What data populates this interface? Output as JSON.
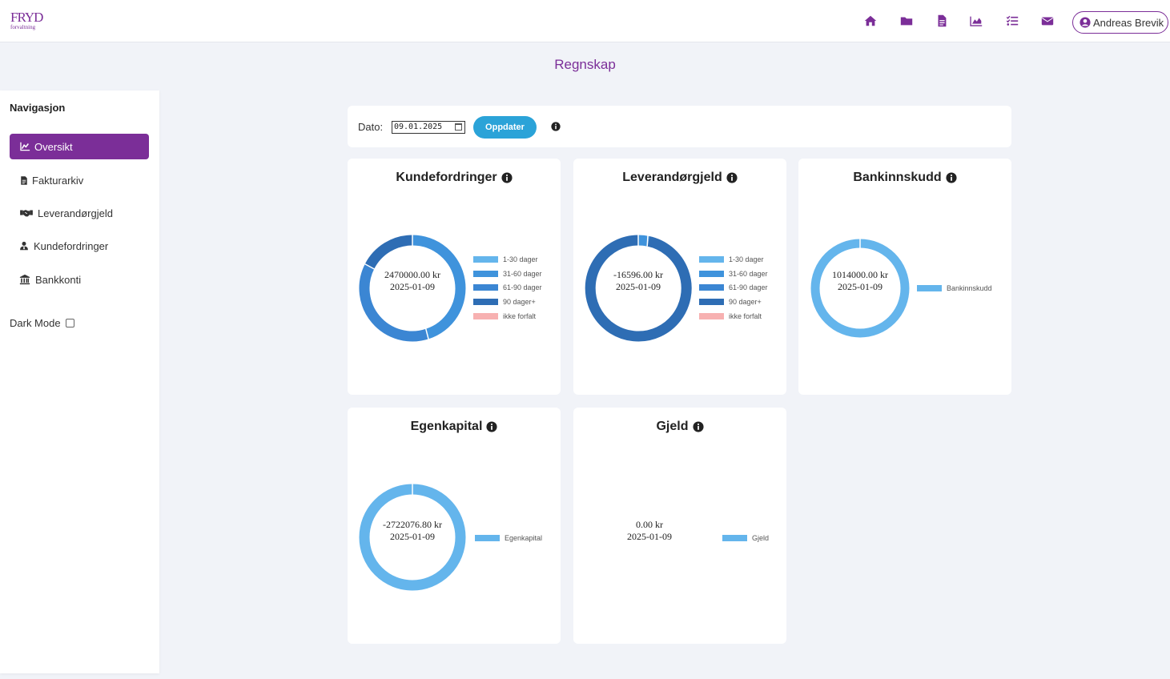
{
  "header": {
    "logo_main": "FRYD",
    "logo_sub": "forvaltning",
    "nav_icons": [
      "home-icon",
      "folder-icon",
      "document-icon",
      "chart-icon",
      "tasks-icon",
      "envelope-icon"
    ],
    "user_name": "Andreas Brevik"
  },
  "page_title": "Regnskap",
  "sidebar": {
    "title": "Navigasjon",
    "items": [
      {
        "label": "Oversikt",
        "icon": "chart-icon",
        "active": true
      },
      {
        "label": "Fakturarkiv",
        "icon": "document-icon",
        "active": false
      },
      {
        "label": "Leverandørgjeld",
        "icon": "handshake-icon",
        "active": false
      },
      {
        "label": "Kundefordringer",
        "icon": "user-tie-icon",
        "active": false
      },
      {
        "label": "Bankkonti",
        "icon": "bank-icon",
        "active": false
      }
    ],
    "dark_mode_label": "Dark Mode"
  },
  "datebar": {
    "label": "Dato:",
    "value": "09.01.2025",
    "button_label": "Oppdater"
  },
  "colors": {
    "brand": "#7b2e98",
    "button": "#2ba3d8",
    "c1": "#64b5ec",
    "c2": "#3f93dc",
    "c3": "#3b86d3",
    "c4": "#2e6db4",
    "c5": "#f7b1b1"
  },
  "cards": [
    {
      "title": "Kundefordringer",
      "amount": "2470000.00 kr",
      "date": "2025-01-09",
      "legend": [
        {
          "label": "1-30 dager",
          "color": "#64b5ec"
        },
        {
          "label": "31-60 dager",
          "color": "#3f93dc"
        },
        {
          "label": "61-90 dager",
          "color": "#3b86d3"
        },
        {
          "label": "90 dager+",
          "color": "#2e6db4"
        },
        {
          "label": "ikke forfalt",
          "color": "#f7b1b1"
        }
      ]
    },
    {
      "title": "Leverandørgjeld",
      "amount": "-16596.00 kr",
      "date": "2025-01-09",
      "legend": [
        {
          "label": "1-30 dager",
          "color": "#64b5ec"
        },
        {
          "label": "31-60 dager",
          "color": "#3f93dc"
        },
        {
          "label": "61-90 dager",
          "color": "#3b86d3"
        },
        {
          "label": "90 dager+",
          "color": "#2e6db4"
        },
        {
          "label": "ikke forfalt",
          "color": "#f7b1b1"
        }
      ]
    },
    {
      "title": "Bankinnskudd",
      "amount": "1014000.00 kr",
      "date": "2025-01-09",
      "legend": [
        {
          "label": "Bankinnskudd",
          "color": "#64b5ec"
        }
      ]
    },
    {
      "title": "Egenkapital",
      "amount": "-2722076.80 kr",
      "date": "2025-01-09",
      "legend": [
        {
          "label": "Egenkapital",
          "color": "#64b5ec"
        }
      ]
    },
    {
      "title": "Gjeld",
      "amount": "0.00 kr",
      "date": "2025-01-09",
      "legend": [
        {
          "label": "Gjeld",
          "color": "#64b5ec"
        }
      ]
    }
  ]
}
